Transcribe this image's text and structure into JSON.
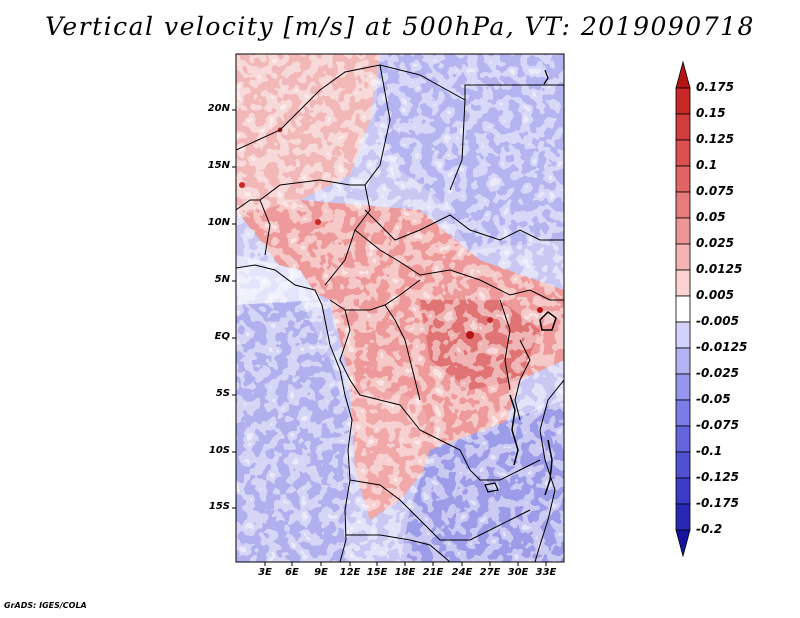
{
  "title": "Vertical velocity [m/s] at 500hPa, VT: 2019090718",
  "credit": "GrADS: IGES/COLA",
  "map": {
    "lat_labels": [
      "20N",
      "15N",
      "10N",
      "5N",
      "EQ",
      "5S",
      "10S",
      "15S"
    ],
    "lon_labels": [
      "3E",
      "6E",
      "9E",
      "12E",
      "15E",
      "18E",
      "21E",
      "24E",
      "27E",
      "30E",
      "33E"
    ]
  },
  "colorbar": {
    "labels": [
      "0.175",
      "0.15",
      "0.125",
      "0.1",
      "0.075",
      "0.05",
      "0.025",
      "0.0125",
      "0.005",
      "-0.005",
      "-0.0125",
      "-0.025",
      "-0.05",
      "-0.075",
      "-0.1",
      "-0.125",
      "-0.175",
      "-0.2"
    ],
    "colors": [
      "#b41414",
      "#c82828",
      "#d23c3c",
      "#dc5050",
      "#e16464",
      "#e67c7c",
      "#ee9696",
      "#f5b4b4",
      "#fad2d2",
      "#ffffff",
      "#d2d2fa",
      "#b4b4f5",
      "#9696ee",
      "#7c7ce6",
      "#6464dc",
      "#5050d2",
      "#3c3cc8",
      "#2828b4",
      "#1414a0"
    ]
  }
}
